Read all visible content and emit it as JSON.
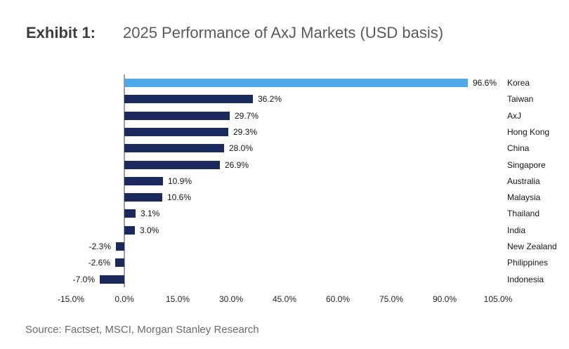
{
  "header": {
    "exhibit_label": "Exhibit 1:",
    "title": "2025 Performance of AxJ Markets (USD basis)"
  },
  "chart_data": {
    "type": "bar",
    "orientation": "horizontal",
    "title": "2025 Performance of AxJ Markets (USD basis)",
    "categories": [
      "Korea",
      "Taiwan",
      "AxJ",
      "Hong Kong",
      "China",
      "Singapore",
      "Australia",
      "Malaysia",
      "Thailand",
      "India",
      "New Zealand",
      "Philippines",
      "Indonesia"
    ],
    "values": [
      96.6,
      36.2,
      29.7,
      29.3,
      28.0,
      26.9,
      10.9,
      10.6,
      3.1,
      3.0,
      -2.3,
      -2.6,
      -7.0
    ],
    "value_labels": [
      "96.6%",
      "36.2%",
      "29.7%",
      "29.3%",
      "28.0%",
      "26.9%",
      "10.9%",
      "10.6%",
      "3.1%",
      "3.0%",
      "-2.3%",
      "-2.6%",
      "-7.0%"
    ],
    "highlight_index": 0,
    "x_ticks": [
      "-15.0%",
      "0.0%",
      "15.0%",
      "30.0%",
      "45.0%",
      "60.0%",
      "75.0%",
      "90.0%",
      "105.0%"
    ],
    "xlim": [
      -15,
      105
    ],
    "grid": false,
    "legend": false,
    "xlabel": "",
    "ylabel": "",
    "colors": {
      "bar_default": "#1B2A5C",
      "bar_highlight": "#4FA8E8",
      "axis_line": "#9E9E9E"
    }
  },
  "source": "Source: Factset, MSCI, Morgan Stanley Research"
}
